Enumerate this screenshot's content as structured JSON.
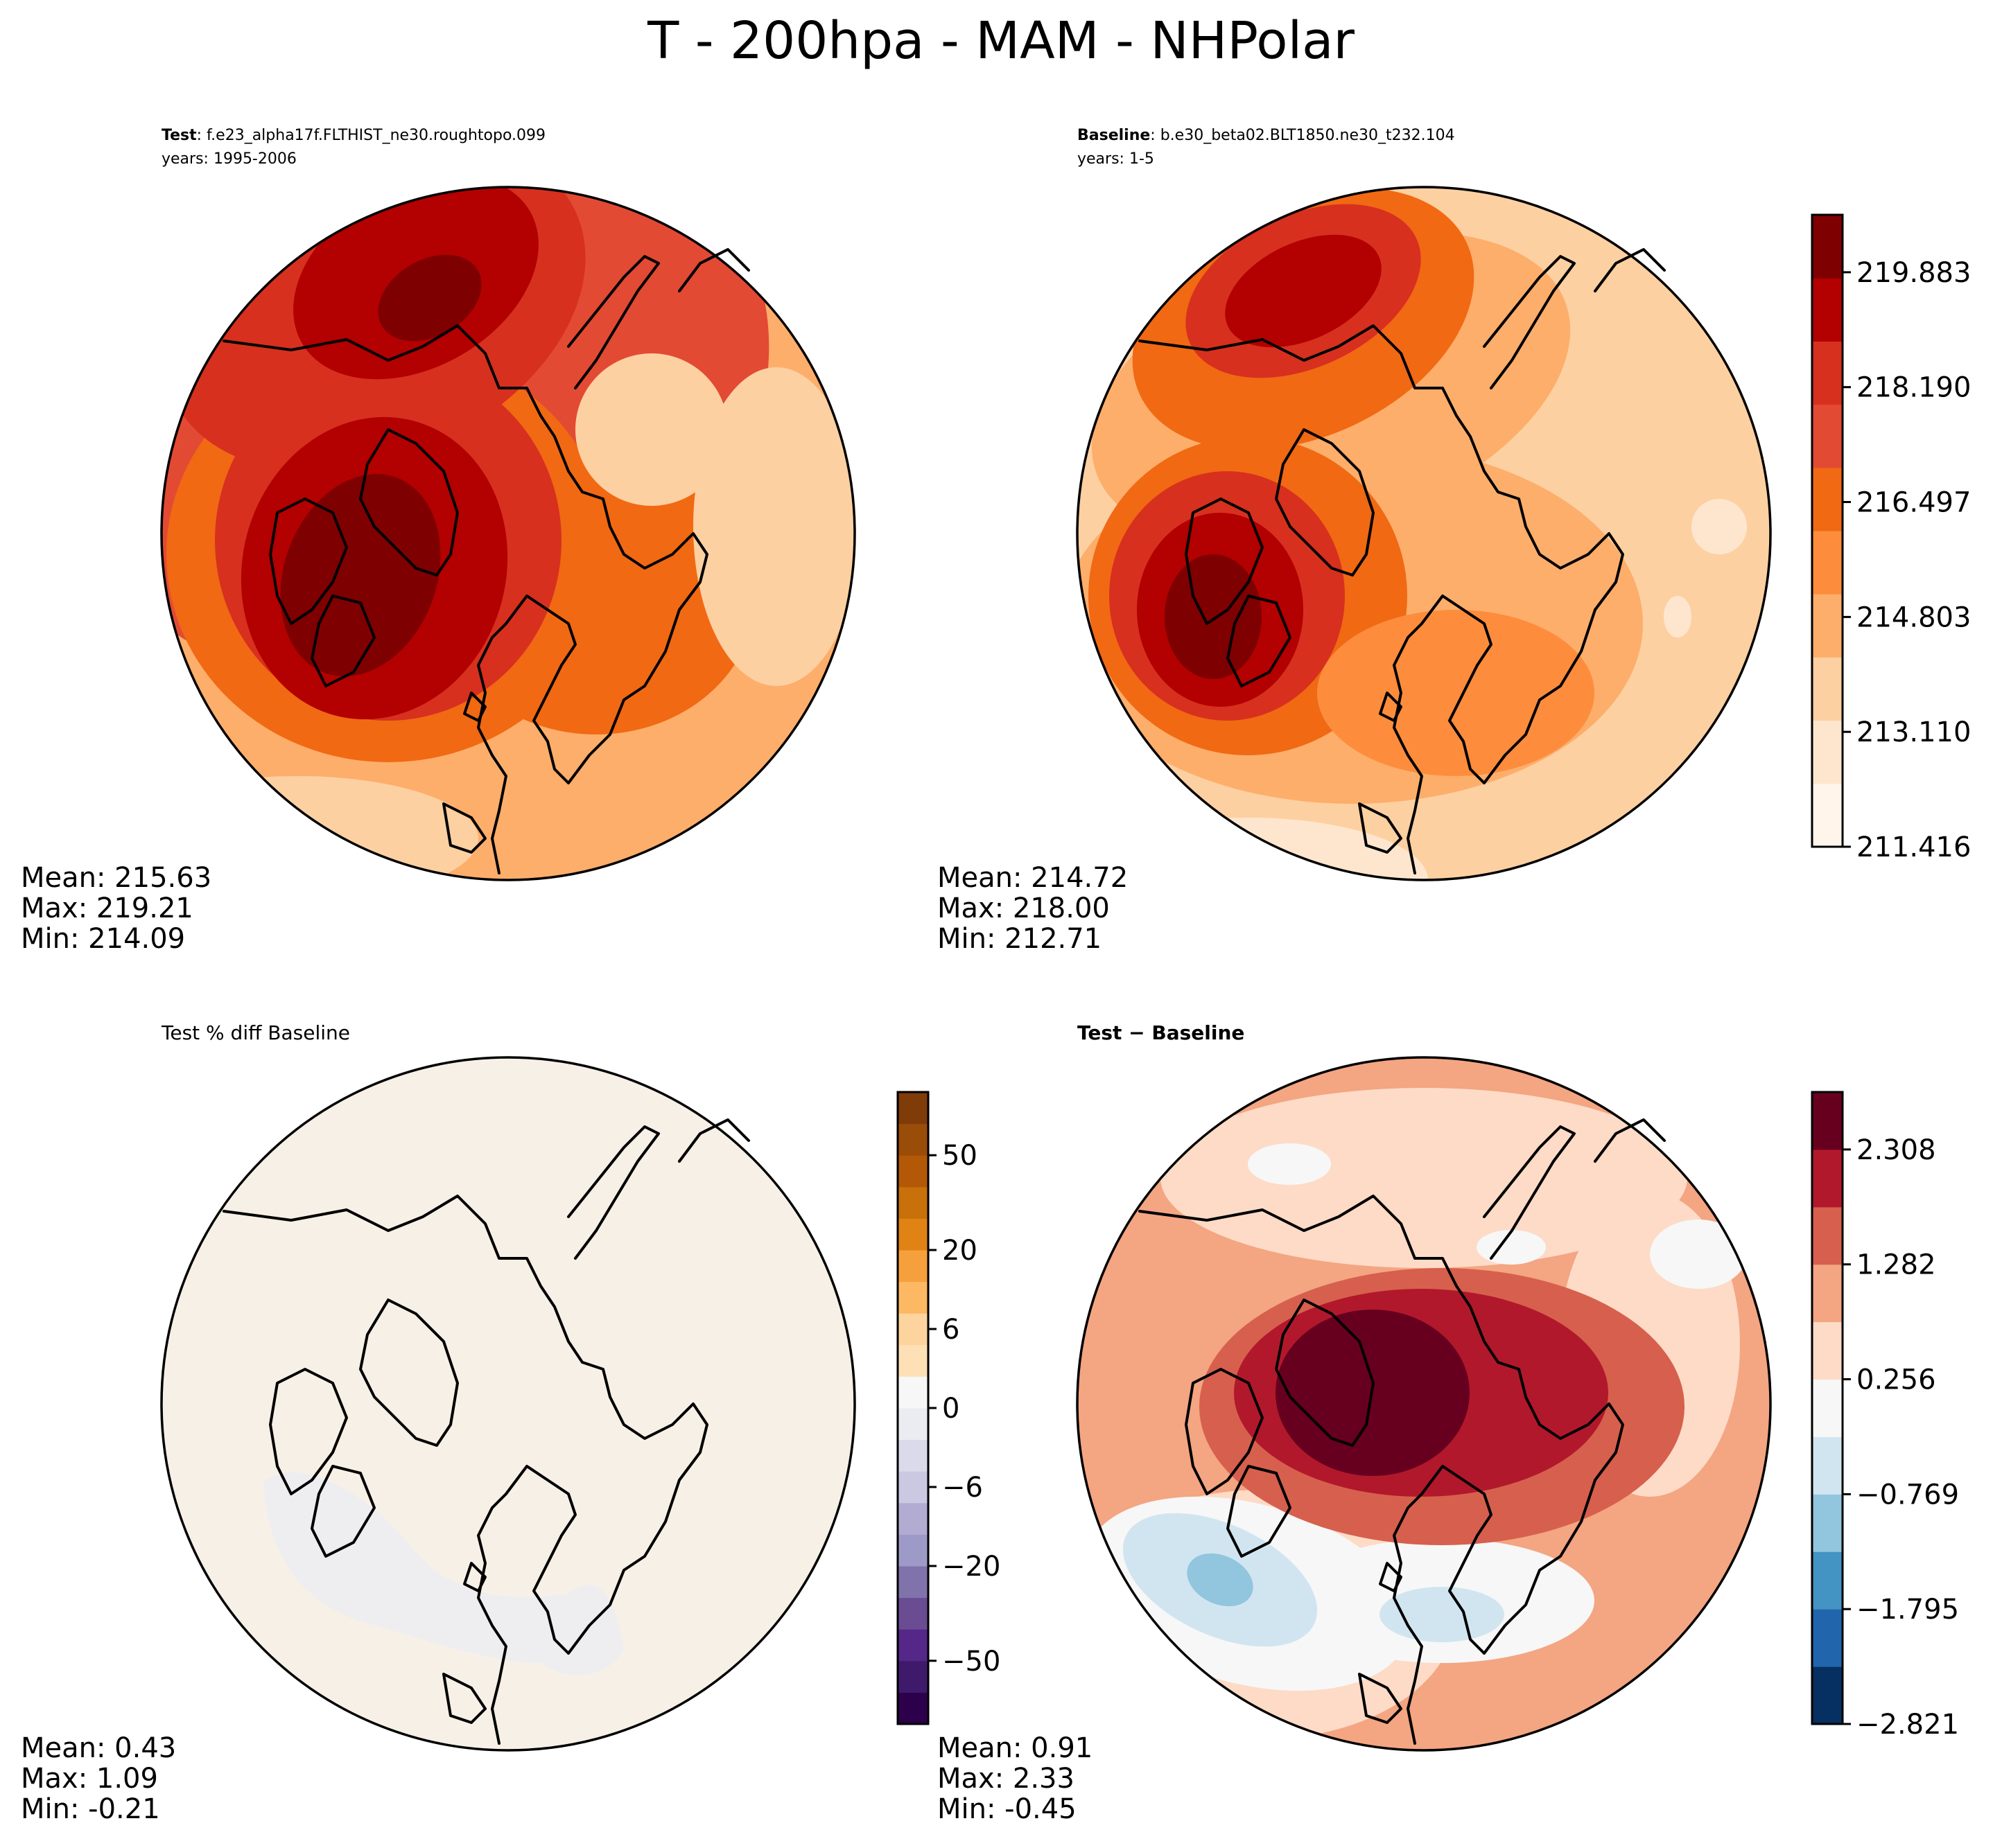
{
  "figure": {
    "title": "T - 200hpa - MAM - NHPolar"
  },
  "panels": [
    {
      "id": "test",
      "label_bold": "Test",
      "label_rest": ": f.e23_alpha17f.FLTHIST_ne30.roughtopo.099",
      "years": "years: 1995-2006",
      "stats": [
        "Mean: 215.63",
        "Max: 219.21",
        "Min: 214.09"
      ]
    },
    {
      "id": "baseline",
      "label_bold": "Baseline",
      "label_rest": ": b.e30_beta02.BLT1850.ne30_t232.104",
      "years": "years: 1-5",
      "stats": [
        "Mean: 214.72",
        "Max: 218.00",
        "Min: 212.71"
      ]
    },
    {
      "id": "pctdiff",
      "label_bold": "",
      "label_rest": "Test % diff Baseline",
      "years": "",
      "stats": [
        "Mean:  0.43",
        "Max:  1.09",
        "Min: -0.21"
      ]
    },
    {
      "id": "diff",
      "label_bold": "Test − Baseline",
      "label_rest": "",
      "years": "",
      "stats": [
        "Mean:  0.91",
        "Max:  2.33",
        "Min: -0.45"
      ]
    }
  ],
  "colorbars": {
    "main": {
      "ticks": [
        "219.883",
        "218.190",
        "216.497",
        "214.803",
        "213.110",
        "211.416"
      ],
      "range": [
        211.416,
        220.729
      ],
      "colors": [
        "#fff5eb",
        "#fee6ce",
        "#fdd0a2",
        "#fdae6b",
        "#fd8d3c",
        "#f16913",
        "#e34a33",
        "#d7301f",
        "#b30000",
        "#7f0000"
      ]
    },
    "pct": {
      "ticks": [
        "50",
        "20",
        "6",
        "0",
        "−6",
        "−20",
        "−50"
      ],
      "colors": [
        "#2d004b",
        "#3f1a6b",
        "#542788",
        "#6a4c93",
        "#8073ac",
        "#9e9ac8",
        "#b2abd2",
        "#cbc9e2",
        "#dadaeb",
        "#ebebf2",
        "#f7f7f7",
        "#fee0b6",
        "#fdd49e",
        "#fdb863",
        "#f6a03d",
        "#e08214",
        "#c8700a",
        "#b35806",
        "#9a4d08",
        "#7f3b08"
      ]
    },
    "diff": {
      "ticks": [
        "2.308",
        "1.282",
        "0.256",
        "−0.769",
        "−1.795",
        "−2.821"
      ],
      "range": [
        -2.821,
        2.821
      ],
      "colors": [
        "#053061",
        "#2166ac",
        "#4393c3",
        "#92c5de",
        "#d1e5f0",
        "#f7f7f7",
        "#fddbc7",
        "#f4a582",
        "#d6604d",
        "#b2182b",
        "#67001f"
      ]
    }
  },
  "chart_data": {
    "type": "heatmap",
    "title": "T - 200hpa - MAM - NHPolar",
    "variable": "T",
    "level": "200hpa",
    "season": "MAM",
    "region": "NHPolar",
    "maps": [
      {
        "name": "Test",
        "case": "f.e23_alpha17f.FLTHIST_ne30.roughtopo.099",
        "years": "1995-2006",
        "mean": 215.63,
        "max": 219.21,
        "min": 214.09,
        "colorbar_range": [
          211.416,
          220.729
        ]
      },
      {
        "name": "Baseline",
        "case": "b.e30_beta02.BLT1850.ne30_t232.104",
        "years": "1-5",
        "mean": 214.72,
        "max": 218.0,
        "min": 212.71,
        "colorbar_range": [
          211.416,
          220.729
        ]
      },
      {
        "name": "Test % diff Baseline",
        "mean": 0.43,
        "max": 1.09,
        "min": -0.21,
        "colorbar_ticks": [
          -50,
          -20,
          -6,
          0,
          6,
          20,
          50
        ]
      },
      {
        "name": "Test - Baseline",
        "mean": 0.91,
        "max": 2.33,
        "min": -0.45,
        "colorbar_range": [
          -2.821,
          2.821
        ]
      }
    ]
  }
}
